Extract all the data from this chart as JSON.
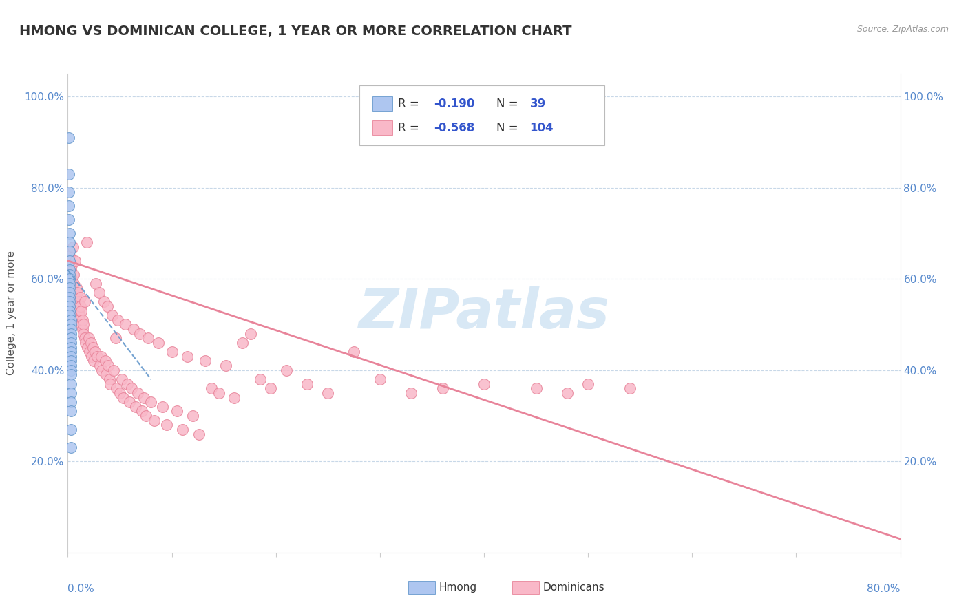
{
  "title": "HMONG VS DOMINICAN COLLEGE, 1 YEAR OR MORE CORRELATION CHART",
  "source_text": "Source: ZipAtlas.com",
  "ylabel": "College, 1 year or more",
  "xmin": 0.0,
  "xmax": 0.8,
  "ymin": 0.0,
  "ymax": 1.05,
  "ytick_values": [
    0.0,
    0.2,
    0.4,
    0.6,
    0.8,
    1.0
  ],
  "hmong_color": "#aec6f0",
  "hmong_edge_color": "#6699cc",
  "dominican_color": "#f9b8c8",
  "dominican_edge_color": "#e8849a",
  "trendline_hmong_color": "#6699cc",
  "trendline_dominican_color": "#e8849a",
  "background_color": "#ffffff",
  "grid_color": "#c8d8e8",
  "watermark_text": "ZIPatlas",
  "watermark_color": "#d8e8f5",
  "legend_r1": "-0.190",
  "legend_n1": "39",
  "legend_r2": "-0.568",
  "legend_n2": "104",
  "hmong_points": [
    [
      0.001,
      0.91
    ],
    [
      0.001,
      0.83
    ],
    [
      0.001,
      0.79
    ],
    [
      0.001,
      0.76
    ],
    [
      0.001,
      0.73
    ],
    [
      0.002,
      0.7
    ],
    [
      0.002,
      0.68
    ],
    [
      0.002,
      0.66
    ],
    [
      0.002,
      0.64
    ],
    [
      0.002,
      0.62
    ],
    [
      0.002,
      0.61
    ],
    [
      0.002,
      0.6
    ],
    [
      0.002,
      0.59
    ],
    [
      0.002,
      0.58
    ],
    [
      0.002,
      0.57
    ],
    [
      0.002,
      0.56
    ],
    [
      0.002,
      0.55
    ],
    [
      0.002,
      0.54
    ],
    [
      0.002,
      0.53
    ],
    [
      0.002,
      0.52
    ],
    [
      0.003,
      0.51
    ],
    [
      0.003,
      0.5
    ],
    [
      0.003,
      0.49
    ],
    [
      0.003,
      0.48
    ],
    [
      0.003,
      0.47
    ],
    [
      0.003,
      0.46
    ],
    [
      0.003,
      0.45
    ],
    [
      0.003,
      0.44
    ],
    [
      0.003,
      0.43
    ],
    [
      0.003,
      0.42
    ],
    [
      0.003,
      0.41
    ],
    [
      0.003,
      0.4
    ],
    [
      0.003,
      0.39
    ],
    [
      0.003,
      0.37
    ],
    [
      0.003,
      0.35
    ],
    [
      0.003,
      0.33
    ],
    [
      0.003,
      0.31
    ],
    [
      0.003,
      0.27
    ],
    [
      0.003,
      0.23
    ]
  ],
  "dominican_points": [
    [
      0.002,
      0.65
    ],
    [
      0.003,
      0.62
    ],
    [
      0.003,
      0.58
    ],
    [
      0.004,
      0.63
    ],
    [
      0.004,
      0.6
    ],
    [
      0.005,
      0.67
    ],
    [
      0.005,
      0.57
    ],
    [
      0.006,
      0.61
    ],
    [
      0.006,
      0.59
    ],
    [
      0.007,
      0.56
    ],
    [
      0.007,
      0.64
    ],
    [
      0.008,
      0.58
    ],
    [
      0.008,
      0.55
    ],
    [
      0.009,
      0.57
    ],
    [
      0.009,
      0.54
    ],
    [
      0.01,
      0.53
    ],
    [
      0.01,
      0.55
    ],
    [
      0.011,
      0.52
    ],
    [
      0.011,
      0.51
    ],
    [
      0.012,
      0.56
    ],
    [
      0.012,
      0.54
    ],
    [
      0.013,
      0.5
    ],
    [
      0.013,
      0.53
    ],
    [
      0.014,
      0.49
    ],
    [
      0.014,
      0.51
    ],
    [
      0.015,
      0.48
    ],
    [
      0.015,
      0.5
    ],
    [
      0.016,
      0.47
    ],
    [
      0.016,
      0.55
    ],
    [
      0.017,
      0.46
    ],
    [
      0.018,
      0.68
    ],
    [
      0.019,
      0.45
    ],
    [
      0.02,
      0.47
    ],
    [
      0.021,
      0.44
    ],
    [
      0.022,
      0.46
    ],
    [
      0.023,
      0.43
    ],
    [
      0.024,
      0.45
    ],
    [
      0.025,
      0.42
    ],
    [
      0.026,
      0.44
    ],
    [
      0.027,
      0.59
    ],
    [
      0.028,
      0.43
    ],
    [
      0.03,
      0.57
    ],
    [
      0.031,
      0.41
    ],
    [
      0.032,
      0.43
    ],
    [
      0.033,
      0.4
    ],
    [
      0.035,
      0.55
    ],
    [
      0.036,
      0.42
    ],
    [
      0.037,
      0.39
    ],
    [
      0.038,
      0.54
    ],
    [
      0.039,
      0.41
    ],
    [
      0.04,
      0.38
    ],
    [
      0.041,
      0.37
    ],
    [
      0.043,
      0.52
    ],
    [
      0.044,
      0.4
    ],
    [
      0.046,
      0.47
    ],
    [
      0.047,
      0.36
    ],
    [
      0.048,
      0.51
    ],
    [
      0.05,
      0.35
    ],
    [
      0.052,
      0.38
    ],
    [
      0.053,
      0.34
    ],
    [
      0.055,
      0.5
    ],
    [
      0.057,
      0.37
    ],
    [
      0.059,
      0.33
    ],
    [
      0.061,
      0.36
    ],
    [
      0.063,
      0.49
    ],
    [
      0.065,
      0.32
    ],
    [
      0.067,
      0.35
    ],
    [
      0.069,
      0.48
    ],
    [
      0.071,
      0.31
    ],
    [
      0.073,
      0.34
    ],
    [
      0.075,
      0.3
    ],
    [
      0.077,
      0.47
    ],
    [
      0.08,
      0.33
    ],
    [
      0.083,
      0.29
    ],
    [
      0.087,
      0.46
    ],
    [
      0.091,
      0.32
    ],
    [
      0.095,
      0.28
    ],
    [
      0.1,
      0.44
    ],
    [
      0.105,
      0.31
    ],
    [
      0.11,
      0.27
    ],
    [
      0.115,
      0.43
    ],
    [
      0.12,
      0.3
    ],
    [
      0.126,
      0.26
    ],
    [
      0.132,
      0.42
    ],
    [
      0.138,
      0.36
    ],
    [
      0.145,
      0.35
    ],
    [
      0.152,
      0.41
    ],
    [
      0.16,
      0.34
    ],
    [
      0.168,
      0.46
    ],
    [
      0.176,
      0.48
    ],
    [
      0.185,
      0.38
    ],
    [
      0.195,
      0.36
    ],
    [
      0.21,
      0.4
    ],
    [
      0.23,
      0.37
    ],
    [
      0.25,
      0.35
    ],
    [
      0.275,
      0.44
    ],
    [
      0.3,
      0.38
    ],
    [
      0.33,
      0.35
    ],
    [
      0.36,
      0.36
    ],
    [
      0.4,
      0.37
    ],
    [
      0.45,
      0.36
    ],
    [
      0.48,
      0.35
    ],
    [
      0.5,
      0.37
    ],
    [
      0.54,
      0.36
    ]
  ],
  "hmong_trendline": [
    [
      0.0,
      0.62
    ],
    [
      0.05,
      0.5
    ]
  ],
  "dominican_trendline": [
    [
      0.0,
      0.64
    ],
    [
      0.8,
      0.03
    ]
  ]
}
